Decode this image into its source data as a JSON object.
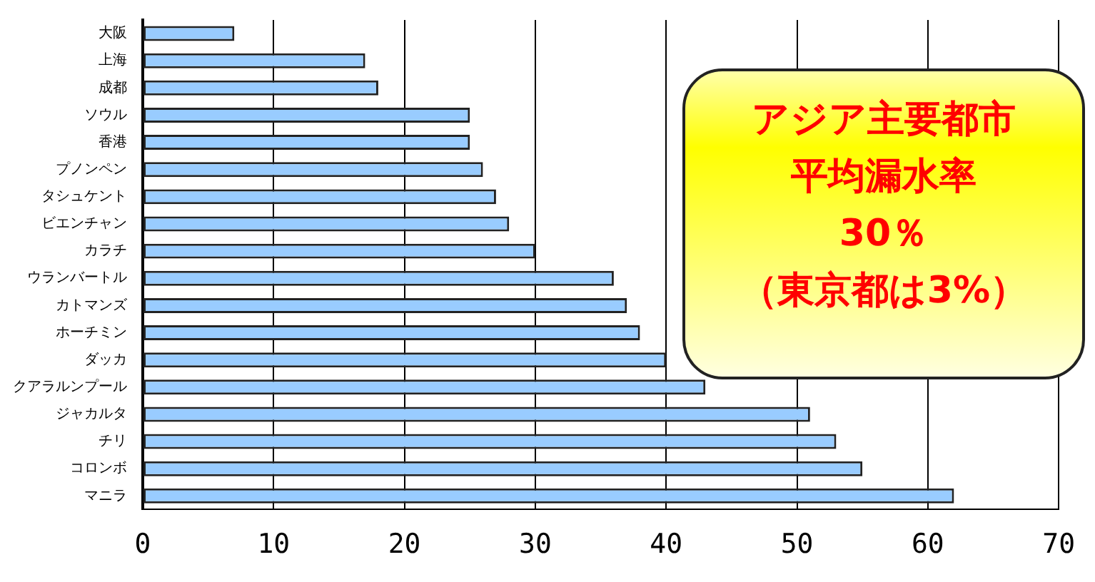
{
  "chart_data": {
    "type": "bar",
    "orientation": "horizontal",
    "categories": [
      "大阪",
      "上海",
      "成都",
      "ソウル",
      "香港",
      "プノンペン",
      "タシュケント",
      "ビエンチャン",
      "カラチ",
      "ウランバートル",
      "カトマンズ",
      "ホーチミン",
      "ダッカ",
      "クアラルンプール",
      "ジャカルタ",
      "チリ",
      "コロンボ",
      "マニラ"
    ],
    "values": [
      7,
      17,
      18,
      25,
      25,
      26,
      27,
      28,
      30,
      36,
      37,
      38,
      40,
      43,
      51,
      53,
      55,
      62
    ],
    "color": "#99ccff",
    "xlim": [
      0,
      70
    ],
    "xticks": [
      0,
      10,
      20,
      30,
      40,
      50,
      60,
      70
    ],
    "grid": "x",
    "legend": false,
    "annotations": [
      "アジア主要都市",
      "平均漏水率",
      "30％",
      "（東京都は3%）"
    ]
  }
}
